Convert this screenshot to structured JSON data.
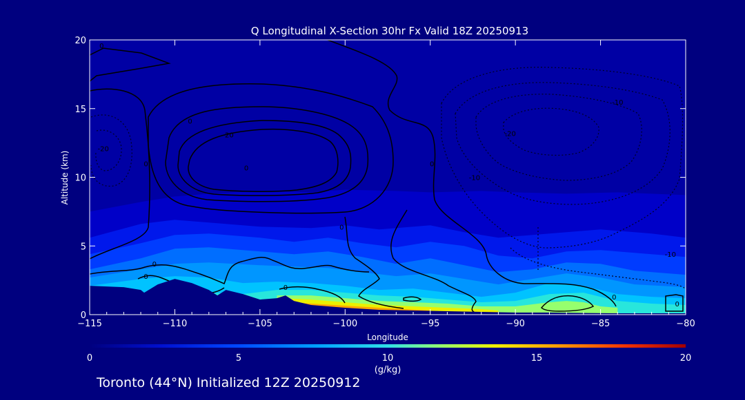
{
  "chart_data": {
    "type": "heatmap",
    "title": "Q Longitudinal X-Section 30hr  Fx Valid 18Z 20250913",
    "xlabel": "Longitude",
    "ylabel": "Altitude (km)",
    "xlim": [
      -115,
      -80
    ],
    "ylim": [
      0,
      20
    ],
    "x_ticks": [
      "−115",
      "−110",
      "−105",
      "−100",
      "−95",
      "−90",
      "−85",
      "−80"
    ],
    "x_tick_values": [
      -115,
      -110,
      -105,
      -100,
      -95,
      -90,
      -85,
      -80
    ],
    "y_ticks": [
      "0",
      "5",
      "10",
      "15",
      "20"
    ],
    "y_tick_values": [
      0,
      5,
      10,
      15,
      20
    ],
    "colorbar": {
      "min": 0,
      "max": 20,
      "ticks": [
        "0",
        "5",
        "10",
        "15",
        "20"
      ],
      "tick_values": [
        0,
        5,
        10,
        15,
        20
      ],
      "unit": "(g/kg)"
    },
    "moisture_layers": [
      {
        "q": 1,
        "top": [
          [
            -115,
            7.5
          ],
          [
            -112,
            8.2
          ],
          [
            -110,
            8.6
          ],
          [
            -108,
            8.8
          ],
          [
            -105,
            9.0
          ],
          [
            -102,
            8.9
          ],
          [
            -100,
            9.1
          ],
          [
            -97,
            9.0
          ],
          [
            -95,
            8.9
          ],
          [
            -92,
            9.0
          ],
          [
            -90,
            8.9
          ],
          [
            -87,
            8.8
          ],
          [
            -84,
            8.9
          ],
          [
            -82,
            8.8
          ],
          [
            -80,
            8.7
          ]
        ]
      },
      {
        "q": 2,
        "top": [
          [
            -115,
            5.6
          ],
          [
            -112,
            6.6
          ],
          [
            -110,
            6.9
          ],
          [
            -108,
            6.7
          ],
          [
            -105,
            6.4
          ],
          [
            -102,
            6.3
          ],
          [
            -100,
            6.5
          ],
          [
            -98,
            6.2
          ],
          [
            -95,
            6.5
          ],
          [
            -93,
            6.0
          ],
          [
            -91,
            5.6
          ],
          [
            -89,
            5.8
          ],
          [
            -87,
            6.0
          ],
          [
            -85,
            6.2
          ],
          [
            -82,
            5.9
          ],
          [
            -80,
            5.6
          ]
        ]
      },
      {
        "q": 3,
        "top": [
          [
            -115,
            4.4
          ],
          [
            -112,
            5.2
          ],
          [
            -110,
            5.8
          ],
          [
            -108,
            5.9
          ],
          [
            -105,
            5.6
          ],
          [
            -103,
            5.3
          ],
          [
            -101,
            5.6
          ],
          [
            -99,
            5.2
          ],
          [
            -97,
            4.9
          ],
          [
            -95,
            5.3
          ],
          [
            -93,
            5.0
          ],
          [
            -91,
            4.3
          ],
          [
            -89,
            4.1
          ],
          [
            -87,
            4.6
          ],
          [
            -85,
            4.7
          ],
          [
            -83,
            4.5
          ],
          [
            -80,
            4.2
          ]
        ]
      },
      {
        "q": 4,
        "top": [
          [
            -115,
            3.3
          ],
          [
            -112,
            4.1
          ],
          [
            -110,
            4.8
          ],
          [
            -108,
            4.9
          ],
          [
            -105,
            4.6
          ],
          [
            -103,
            4.4
          ],
          [
            -101,
            4.6
          ],
          [
            -99,
            4.2
          ],
          [
            -97,
            3.7
          ],
          [
            -95,
            4.1
          ],
          [
            -93,
            3.6
          ],
          [
            -91,
            3.1
          ],
          [
            -89,
            3.3
          ],
          [
            -87,
            3.8
          ],
          [
            -85,
            3.7
          ],
          [
            -83,
            3.2
          ],
          [
            -80,
            2.9
          ]
        ]
      },
      {
        "q": 5,
        "top": [
          [
            -115,
            2.7
          ],
          [
            -112,
            3.3
          ],
          [
            -110,
            3.7
          ],
          [
            -108,
            3.8
          ],
          [
            -105,
            3.6
          ],
          [
            -103,
            3.5
          ],
          [
            -101,
            3.4
          ],
          [
            -99,
            3.1
          ],
          [
            -97,
            2.8
          ],
          [
            -95,
            3.0
          ],
          [
            -93,
            2.6
          ],
          [
            -91,
            2.2
          ],
          [
            -89,
            2.6
          ],
          [
            -87,
            3.0
          ],
          [
            -85,
            2.7
          ],
          [
            -83,
            2.2
          ],
          [
            -80,
            2.0
          ]
        ]
      },
      {
        "q": 6,
        "top": [
          [
            -115,
            2.1
          ],
          [
            -112,
            2.6
          ],
          [
            -110,
            2.8
          ],
          [
            -108,
            2.7
          ],
          [
            -106,
            2.3
          ],
          [
            -104,
            2.4
          ],
          [
            -102,
            2.3
          ],
          [
            -100,
            2.1
          ],
          [
            -98,
            1.8
          ],
          [
            -96,
            1.9
          ],
          [
            -94,
            1.6
          ],
          [
            -92,
            1.3
          ],
          [
            -90,
            1.6
          ],
          [
            -88,
            2.3
          ],
          [
            -86,
            2.1
          ],
          [
            -84,
            1.5
          ],
          [
            -82,
            1.3
          ],
          [
            -80,
            1.2
          ]
        ]
      },
      {
        "q": 8,
        "top": [
          [
            -108,
            1.6
          ],
          [
            -106,
            1.5
          ],
          [
            -104,
            1.8
          ],
          [
            -102,
            1.8
          ],
          [
            -100,
            1.6
          ],
          [
            -98,
            1.4
          ],
          [
            -96,
            1.3
          ],
          [
            -94,
            1.1
          ],
          [
            -92,
            0.9
          ],
          [
            -90,
            1.0
          ],
          [
            -88,
            1.5
          ],
          [
            -86,
            1.6
          ],
          [
            -84,
            1.0
          ],
          [
            -82,
            0.8
          ],
          [
            -80,
            0.7
          ]
        ]
      },
      {
        "q": 10,
        "top": [
          [
            -104,
            1.4
          ],
          [
            -102,
            1.4
          ],
          [
            -100,
            1.2
          ],
          [
            -98,
            1.0
          ],
          [
            -96,
            0.9
          ],
          [
            -94,
            0.8
          ],
          [
            -92,
            0.6
          ],
          [
            -90,
            0.6
          ],
          [
            -88,
            0.9
          ],
          [
            -87,
            1.0
          ],
          [
            -86,
            0.9
          ],
          [
            -85,
            0.6
          ],
          [
            -84,
            0.5
          ]
        ]
      },
      {
        "q": 12,
        "top": [
          [
            -103.8,
            1.2
          ],
          [
            -102,
            1.1
          ],
          [
            -100,
            0.9
          ],
          [
            -98,
            0.7
          ],
          [
            -96,
            0.6
          ],
          [
            -94,
            0.5
          ],
          [
            -92,
            0.4
          ],
          [
            -91,
            0.3
          ]
        ]
      },
      {
        "q": 14,
        "top": [
          [
            -103.2,
            0.9
          ],
          [
            -102,
            0.8
          ],
          [
            -100,
            0.65
          ],
          [
            -98,
            0.5
          ],
          [
            -96.5,
            0.4
          ],
          [
            -95,
            0.3
          ]
        ]
      },
      {
        "q": 15.5,
        "top": [
          [
            -102.5,
            0.6
          ],
          [
            -101,
            0.5
          ],
          [
            -99,
            0.4
          ],
          [
            -97.5,
            0.3
          ]
        ]
      }
    ],
    "terrain": [
      [
        -115,
        2.1
      ],
      [
        -113,
        2.0
      ],
      [
        -112,
        1.8
      ],
      [
        -111.8,
        1.6
      ],
      [
        -111,
        2.2
      ],
      [
        -110,
        2.6
      ],
      [
        -109,
        2.3
      ],
      [
        -108,
        1.8
      ],
      [
        -107.5,
        1.4
      ],
      [
        -107,
        1.8
      ],
      [
        -106,
        1.5
      ],
      [
        -105,
        1.1
      ],
      [
        -104,
        1.2
      ],
      [
        -103.5,
        1.4
      ],
      [
        -103,
        1.0
      ],
      [
        -102,
        0.7
      ],
      [
        -100,
        0.5
      ],
      [
        -98,
        0.35
      ],
      [
        -96,
        0.3
      ],
      [
        -94,
        0.25
      ],
      [
        -92,
        0.2
      ],
      [
        -90,
        0.15
      ],
      [
        -88,
        0.15
      ],
      [
        -86,
        0.12
      ],
      [
        -84,
        0.1
      ],
      [
        -82,
        0.1
      ],
      [
        -80,
        0.1
      ]
    ],
    "contour_labels": [
      {
        "text": "0",
        "lon": -114.3,
        "alt": 19.4
      },
      {
        "text": "0",
        "lon": -109.1,
        "alt": 13.9
      },
      {
        "text": "20",
        "lon": -106.8,
        "alt": 12.9
      },
      {
        "text": "0",
        "lon": -105.8,
        "alt": 10.5
      },
      {
        "text": "-20",
        "lon": -114.2,
        "alt": 11.9
      },
      {
        "text": "0",
        "lon": -111.7,
        "alt": 10.8
      },
      {
        "text": "0",
        "lon": -94.9,
        "alt": 10.8
      },
      {
        "text": "-10",
        "lon": -92.4,
        "alt": 9.8
      },
      {
        "text": "-20",
        "lon": -90.3,
        "alt": 13.0
      },
      {
        "text": "-10",
        "lon": -84.0,
        "alt": 15.3
      },
      {
        "text": "0",
        "lon": -100.2,
        "alt": 6.2
      },
      {
        "text": "0",
        "lon": -111.2,
        "alt": 3.5
      },
      {
        "text": "0",
        "lon": -111.7,
        "alt": 2.6
      },
      {
        "text": "0",
        "lon": -103.5,
        "alt": 1.8
      },
      {
        "text": "0",
        "lon": -84.2,
        "alt": 1.1
      },
      {
        "text": "0",
        "lon": -80.5,
        "alt": 0.6
      },
      {
        "text": "-10",
        "lon": -80.9,
        "alt": 4.2
      }
    ]
  },
  "footer": {
    "location_line": "Toronto (44°N) Initialized 12Z 20250912"
  }
}
